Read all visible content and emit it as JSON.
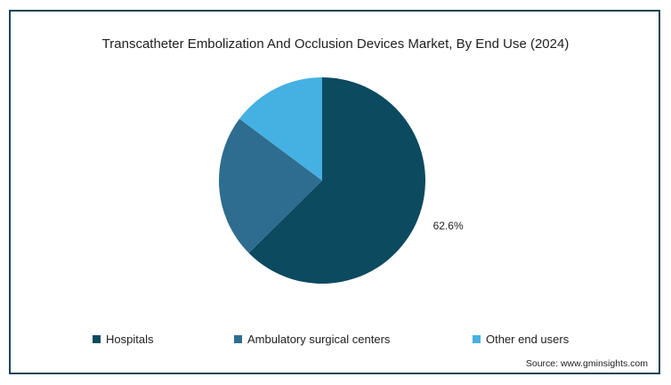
{
  "chart_data": {
    "type": "pie",
    "title": "Transcatheter Embolization And Occlusion Devices Market, By End Use (2024)",
    "slices": [
      {
        "name": "Hospitals",
        "value": 62.6,
        "label": "62.6%",
        "color": "#0c4a60"
      },
      {
        "name": "Ambulatory surgical centers",
        "value": 22.6,
        "color": "#2e6d8f"
      },
      {
        "name": "Other end users",
        "value": 14.8,
        "color": "#45b0e2"
      }
    ],
    "legend_position": "bottom"
  },
  "source": "Source: www.gminsights.com"
}
